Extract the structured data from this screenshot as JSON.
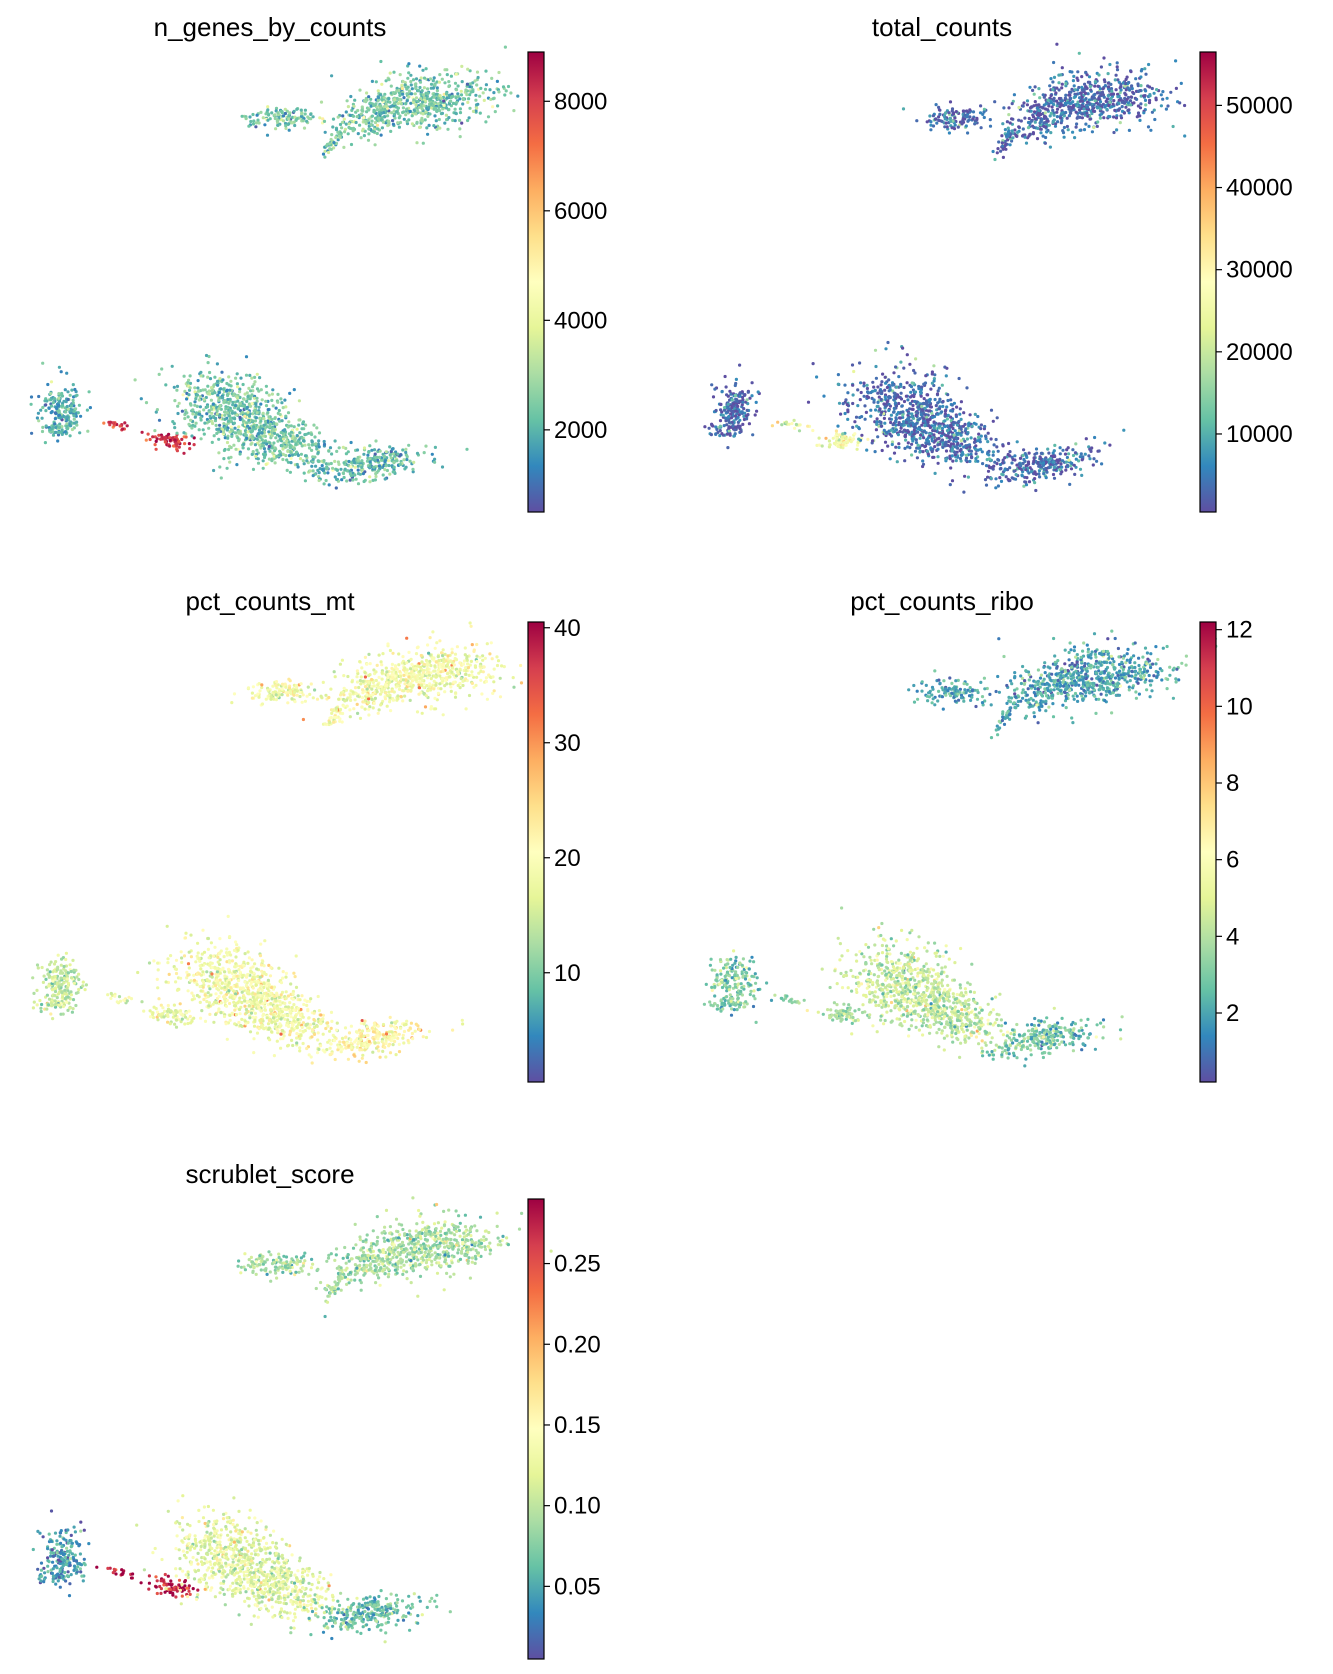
{
  "figure": {
    "layout": "3 rows x 2 columns, last cell empty"
  },
  "colormap": {
    "name": "Spectral_r",
    "stops": [
      "#5e4fa2",
      "#3288bd",
      "#66c2a5",
      "#abdda4",
      "#e6f598",
      "#ffffbf",
      "#fee08b",
      "#fdae61",
      "#f46d43",
      "#d53e4f",
      "#9e0142"
    ]
  },
  "chart_data": [
    {
      "type": "scatter",
      "title": "n_genes_by_counts",
      "xlabel": "",
      "ylabel": "",
      "colorbar": {
        "range": [
          500,
          8900
        ],
        "ticks": [
          2000,
          4000,
          6000,
          8000
        ],
        "tick_labels": [
          "2000",
          "4000",
          "6000",
          "8000"
        ]
      },
      "regions": {
        "top_cluster": 0.22,
        "bottom_left_blob": 0.18,
        "bottom_center": 0.22,
        "bridge_hotspot": 0.9,
        "bottom_right_tail": 0.2
      }
    },
    {
      "type": "scatter",
      "title": "total_counts",
      "xlabel": "",
      "ylabel": "",
      "colorbar": {
        "range": [
          500,
          56500
        ],
        "ticks": [
          10000,
          20000,
          30000,
          40000,
          50000
        ],
        "tick_labels": [
          "10000",
          "20000",
          "30000",
          "40000",
          "50000"
        ]
      },
      "regions": {
        "top_cluster": 0.05,
        "bottom_left_blob": 0.03,
        "bottom_center": 0.05,
        "bridge_hotspot": 0.45,
        "bottom_right_tail": 0.04
      }
    },
    {
      "type": "scatter",
      "title": "pct_counts_mt",
      "xlabel": "",
      "ylabel": "",
      "colorbar": {
        "range": [
          0.5,
          40.5
        ],
        "ticks": [
          10,
          20,
          30,
          40
        ],
        "tick_labels": [
          "10",
          "20",
          "30",
          "40"
        ]
      },
      "regions": {
        "top_cluster": 0.45,
        "bottom_left_blob": 0.35,
        "bottom_center": 0.45,
        "bridge_hotspot": 0.42,
        "bottom_right_tail": 0.5
      }
    },
    {
      "type": "scatter",
      "title": "pct_counts_ribo",
      "xlabel": "",
      "ylabel": "",
      "colorbar": {
        "range": [
          0.2,
          12.2
        ],
        "ticks": [
          2,
          4,
          6,
          8,
          10,
          12
        ],
        "tick_labels": [
          "2",
          "4",
          "6",
          "8",
          "10",
          "12"
        ]
      },
      "regions": {
        "top_cluster": 0.15,
        "bottom_left_blob": 0.25,
        "bottom_center": 0.35,
        "bridge_hotspot": 0.3,
        "bottom_right_tail": 0.22
      }
    },
    {
      "type": "scatter",
      "title": "scrublet_score",
      "xlabel": "",
      "ylabel": "",
      "colorbar": {
        "range": [
          0.005,
          0.29
        ],
        "ticks": [
          0.05,
          0.1,
          0.15,
          0.2,
          0.25
        ],
        "tick_labels": [
          "0.05",
          "0.10",
          "0.15",
          "0.20",
          "0.25"
        ]
      },
      "regions": {
        "top_cluster": 0.3,
        "bottom_left_blob": 0.12,
        "bottom_center": 0.4,
        "bridge_hotspot": 0.95,
        "bottom_right_tail": 0.2
      }
    }
  ]
}
